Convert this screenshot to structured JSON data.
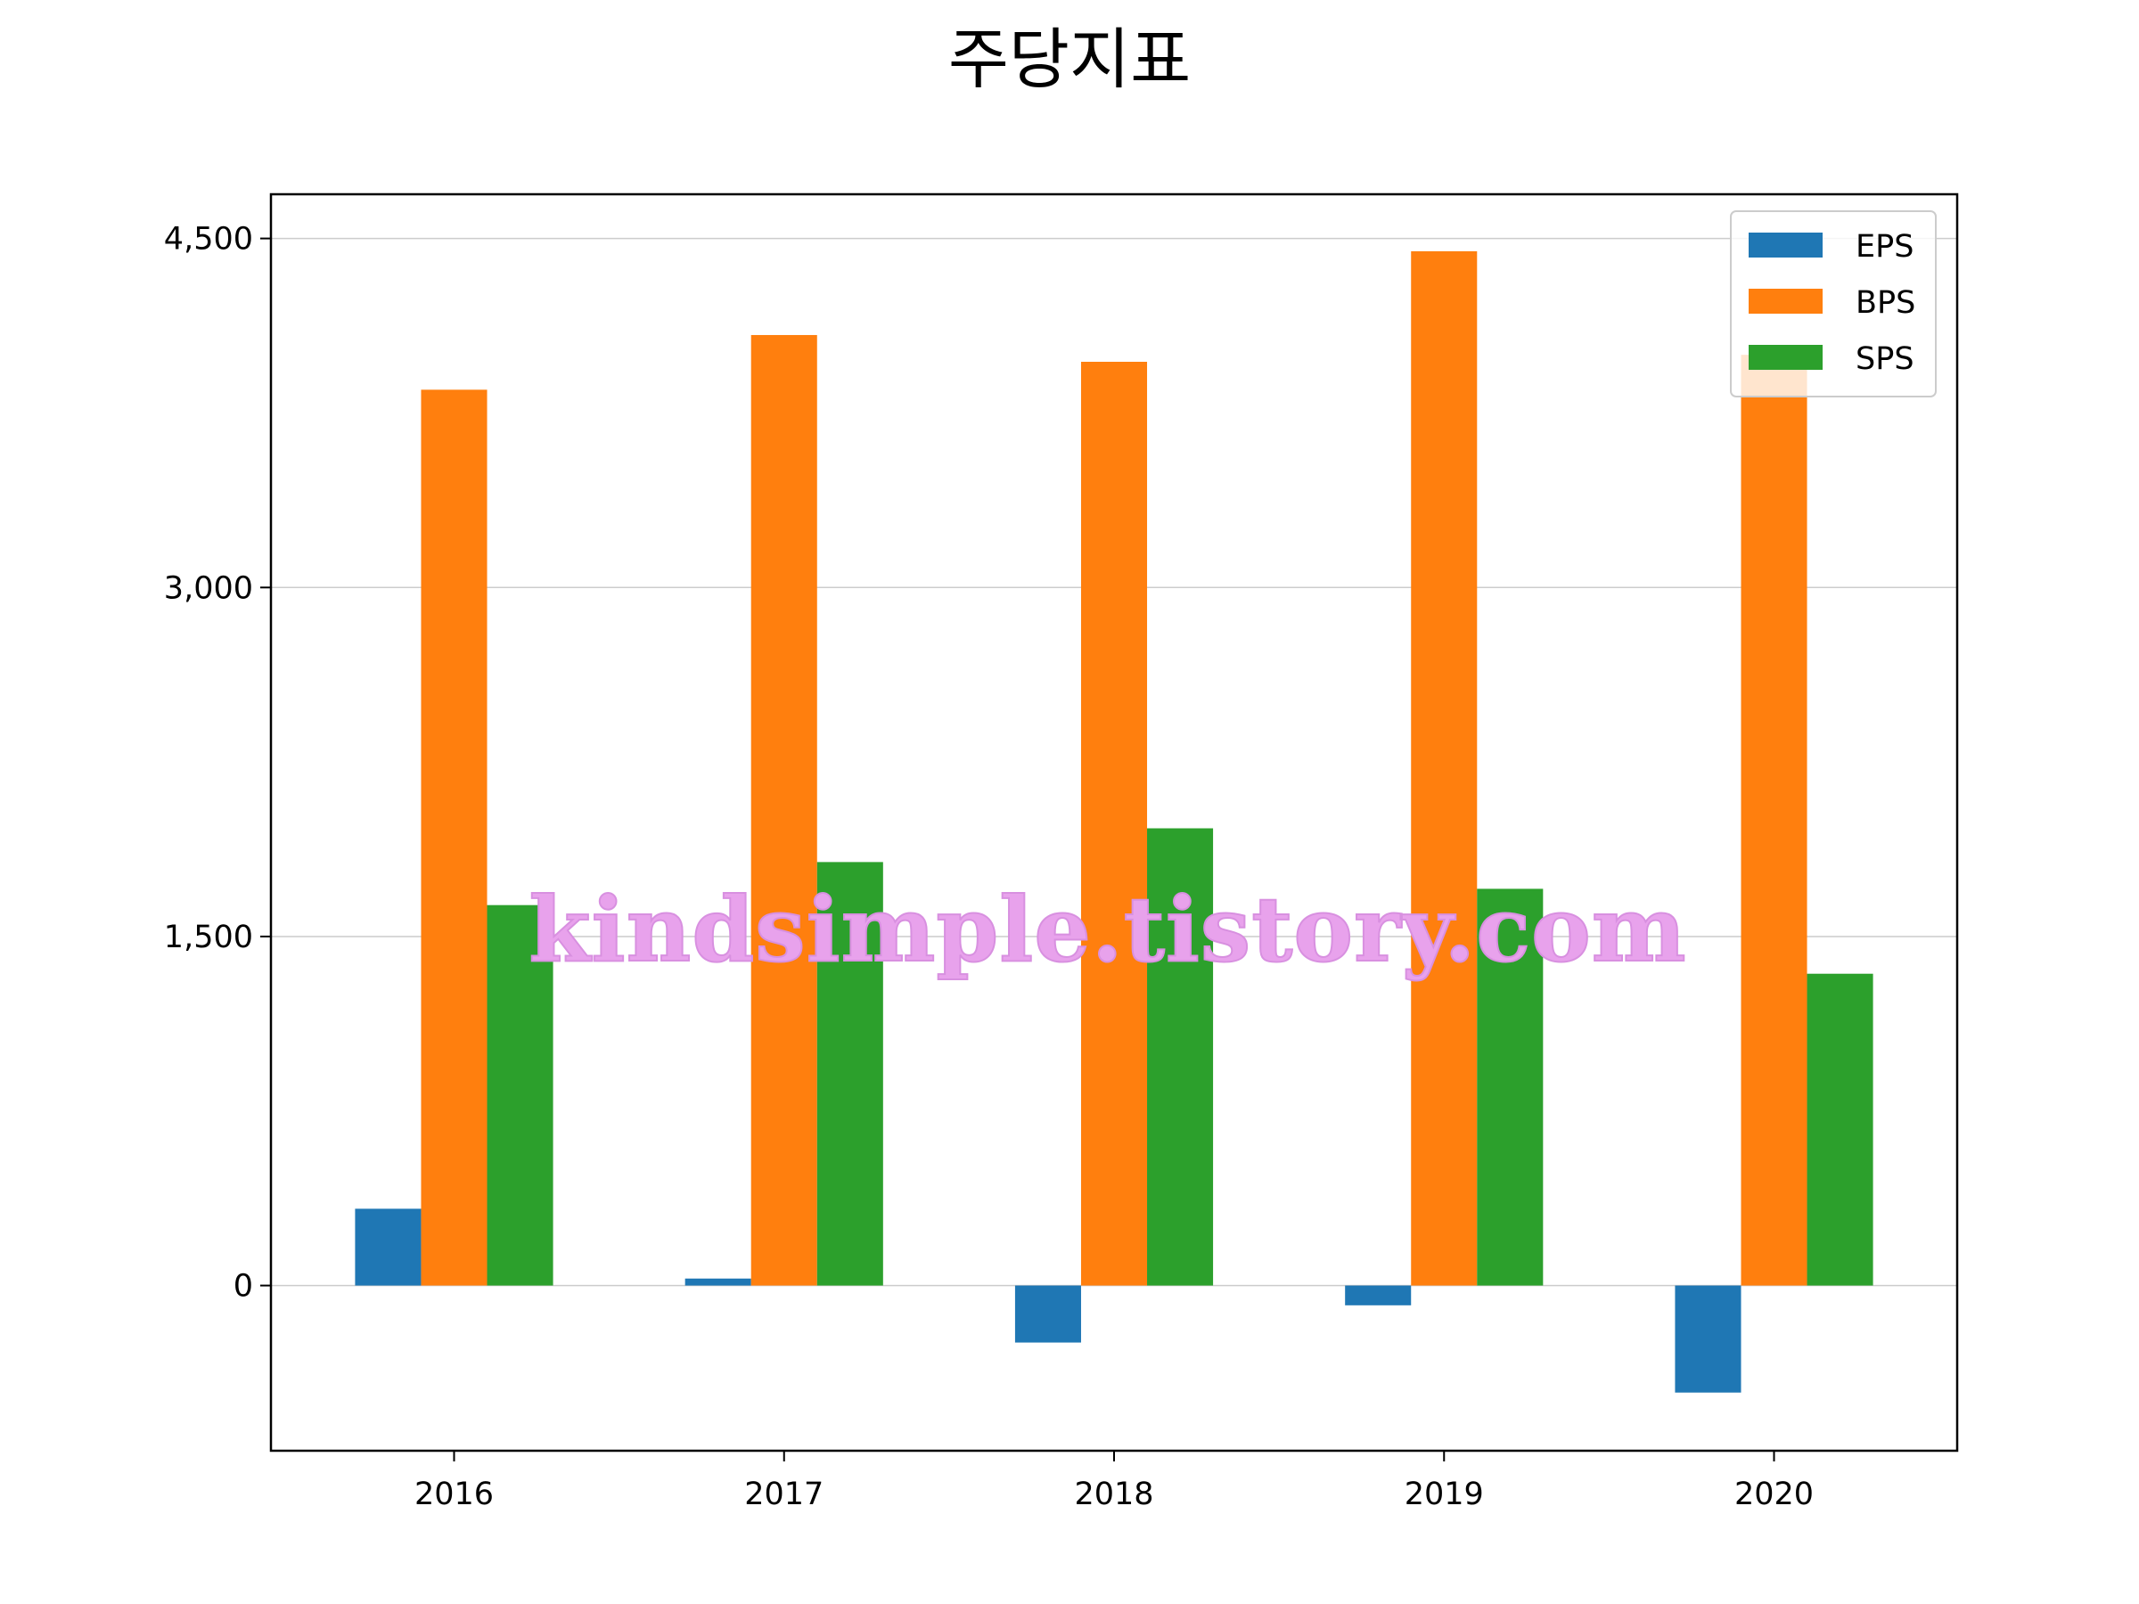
{
  "chart_data": {
    "type": "bar",
    "title": "주당지표",
    "xlabel": "",
    "ylabel": "",
    "categories": [
      "2016",
      "2017",
      "2018",
      "2019",
      "2020"
    ],
    "series": [
      {
        "name": "EPS",
        "color": "#1f77b4",
        "values": [
          330,
          30,
          -245,
          -85,
          -460
        ]
      },
      {
        "name": "BPS",
        "color": "#ff7f0e",
        "values": [
          3850,
          4085,
          3970,
          4445,
          4000
        ]
      },
      {
        "name": "SPS",
        "color": "#2ca02c",
        "values": [
          1635,
          1820,
          1965,
          1705,
          1340
        ]
      }
    ],
    "yticks": [
      0,
      1500,
      3000,
      4500
    ],
    "ytick_labels": [
      "0",
      "1,500",
      "3,000",
      "4,500"
    ],
    "ylim": [
      -710,
      4690
    ],
    "grid": "horizontal",
    "legend_position": "top-right"
  },
  "watermark": "kindsimple.tistory.com"
}
